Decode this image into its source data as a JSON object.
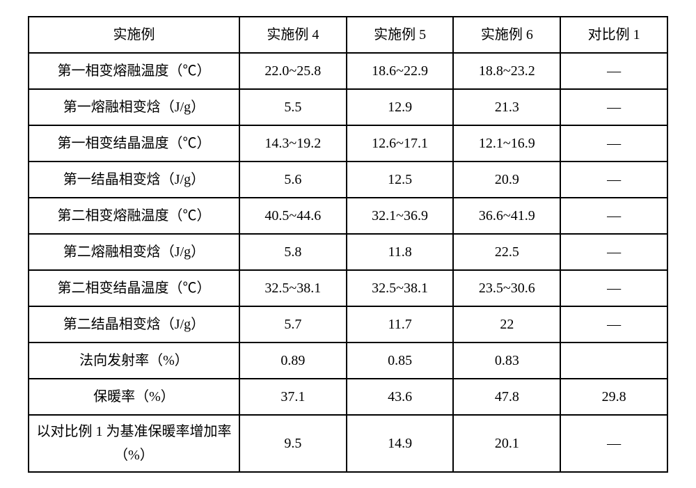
{
  "table": {
    "columns": [
      "实施例",
      "实施例 4",
      "实施例 5",
      "实施例 6",
      "对比例 1"
    ],
    "rows": [
      {
        "label": "第一相变熔融温度（℃）",
        "c1": "22.0~25.8",
        "c2": "18.6~22.9",
        "c3": "18.8~23.2",
        "c4": "—"
      },
      {
        "label": "第一熔融相变焓（J/g）",
        "c1": "5.5",
        "c2": "12.9",
        "c3": "21.3",
        "c4": "—"
      },
      {
        "label": "第一相变结晶温度（℃）",
        "c1": "14.3~19.2",
        "c2": "12.6~17.1",
        "c3": "12.1~16.9",
        "c4": "—"
      },
      {
        "label": "第一结晶相变焓（J/g）",
        "c1": "5.6",
        "c2": "12.5",
        "c3": "20.9",
        "c4": "—"
      },
      {
        "label": "第二相变熔融温度（℃）",
        "c1": "40.5~44.6",
        "c2": "32.1~36.9",
        "c3": "36.6~41.9",
        "c4": "—"
      },
      {
        "label": "第二熔融相变焓（J/g）",
        "c1": "5.8",
        "c2": "11.8",
        "c3": "22.5",
        "c4": "—"
      },
      {
        "label": "第二相变结晶温度（℃）",
        "c1": "32.5~38.1",
        "c2": "32.5~38.1",
        "c3": "23.5~30.6",
        "c4": "—"
      },
      {
        "label": "第二结晶相变焓（J/g）",
        "c1": "5.7",
        "c2": "11.7",
        "c3": "22",
        "c4": "—"
      },
      {
        "label": "法向发射率（%）",
        "c1": "0.89",
        "c2": "0.85",
        "c3": "0.83",
        "c4": ""
      },
      {
        "label": "保暖率（%）",
        "c1": "37.1",
        "c2": "43.6",
        "c3": "47.8",
        "c4": "29.8"
      },
      {
        "label": "以对比例 1 为基准保暖率增加率（%）",
        "c1": "9.5",
        "c2": "14.9",
        "c3": "20.1",
        "c4": "—",
        "tall": true
      }
    ],
    "styling": {
      "border_color": "#000000",
      "border_width": 2,
      "background_color": "#ffffff",
      "text_color": "#000000",
      "font_size": 20,
      "font_family": "SimSun",
      "col_widths_pct": [
        33,
        16.75,
        16.75,
        16.75,
        16.75
      ]
    }
  }
}
